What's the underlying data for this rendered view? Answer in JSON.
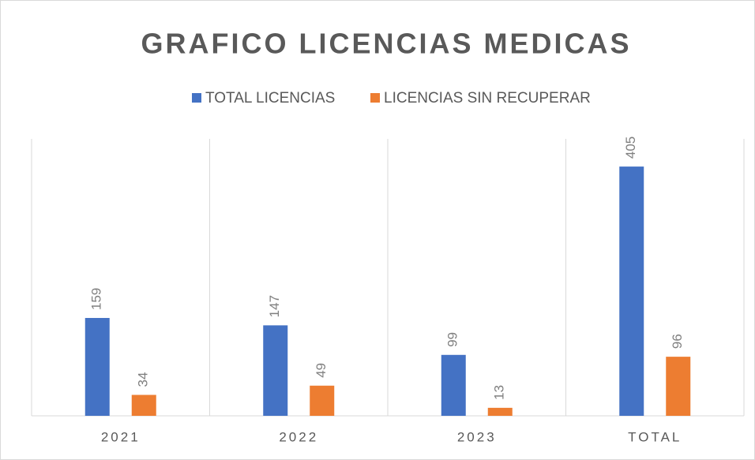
{
  "chart_data": {
    "type": "bar",
    "title": "GRAFICO LICENCIAS MEDICAS",
    "categories": [
      "2021",
      "2022",
      "2023",
      "TOTAL"
    ],
    "series": [
      {
        "name": "TOTAL LICENCIAS",
        "color": "#4472c4",
        "values": [
          159,
          147,
          99,
          405
        ]
      },
      {
        "name": "LICENCIAS SIN RECUPERAR",
        "color": "#ed7d31",
        "values": [
          34,
          49,
          13,
          96
        ]
      }
    ],
    "ylim": [
      0,
      450
    ],
    "legend": "top"
  }
}
